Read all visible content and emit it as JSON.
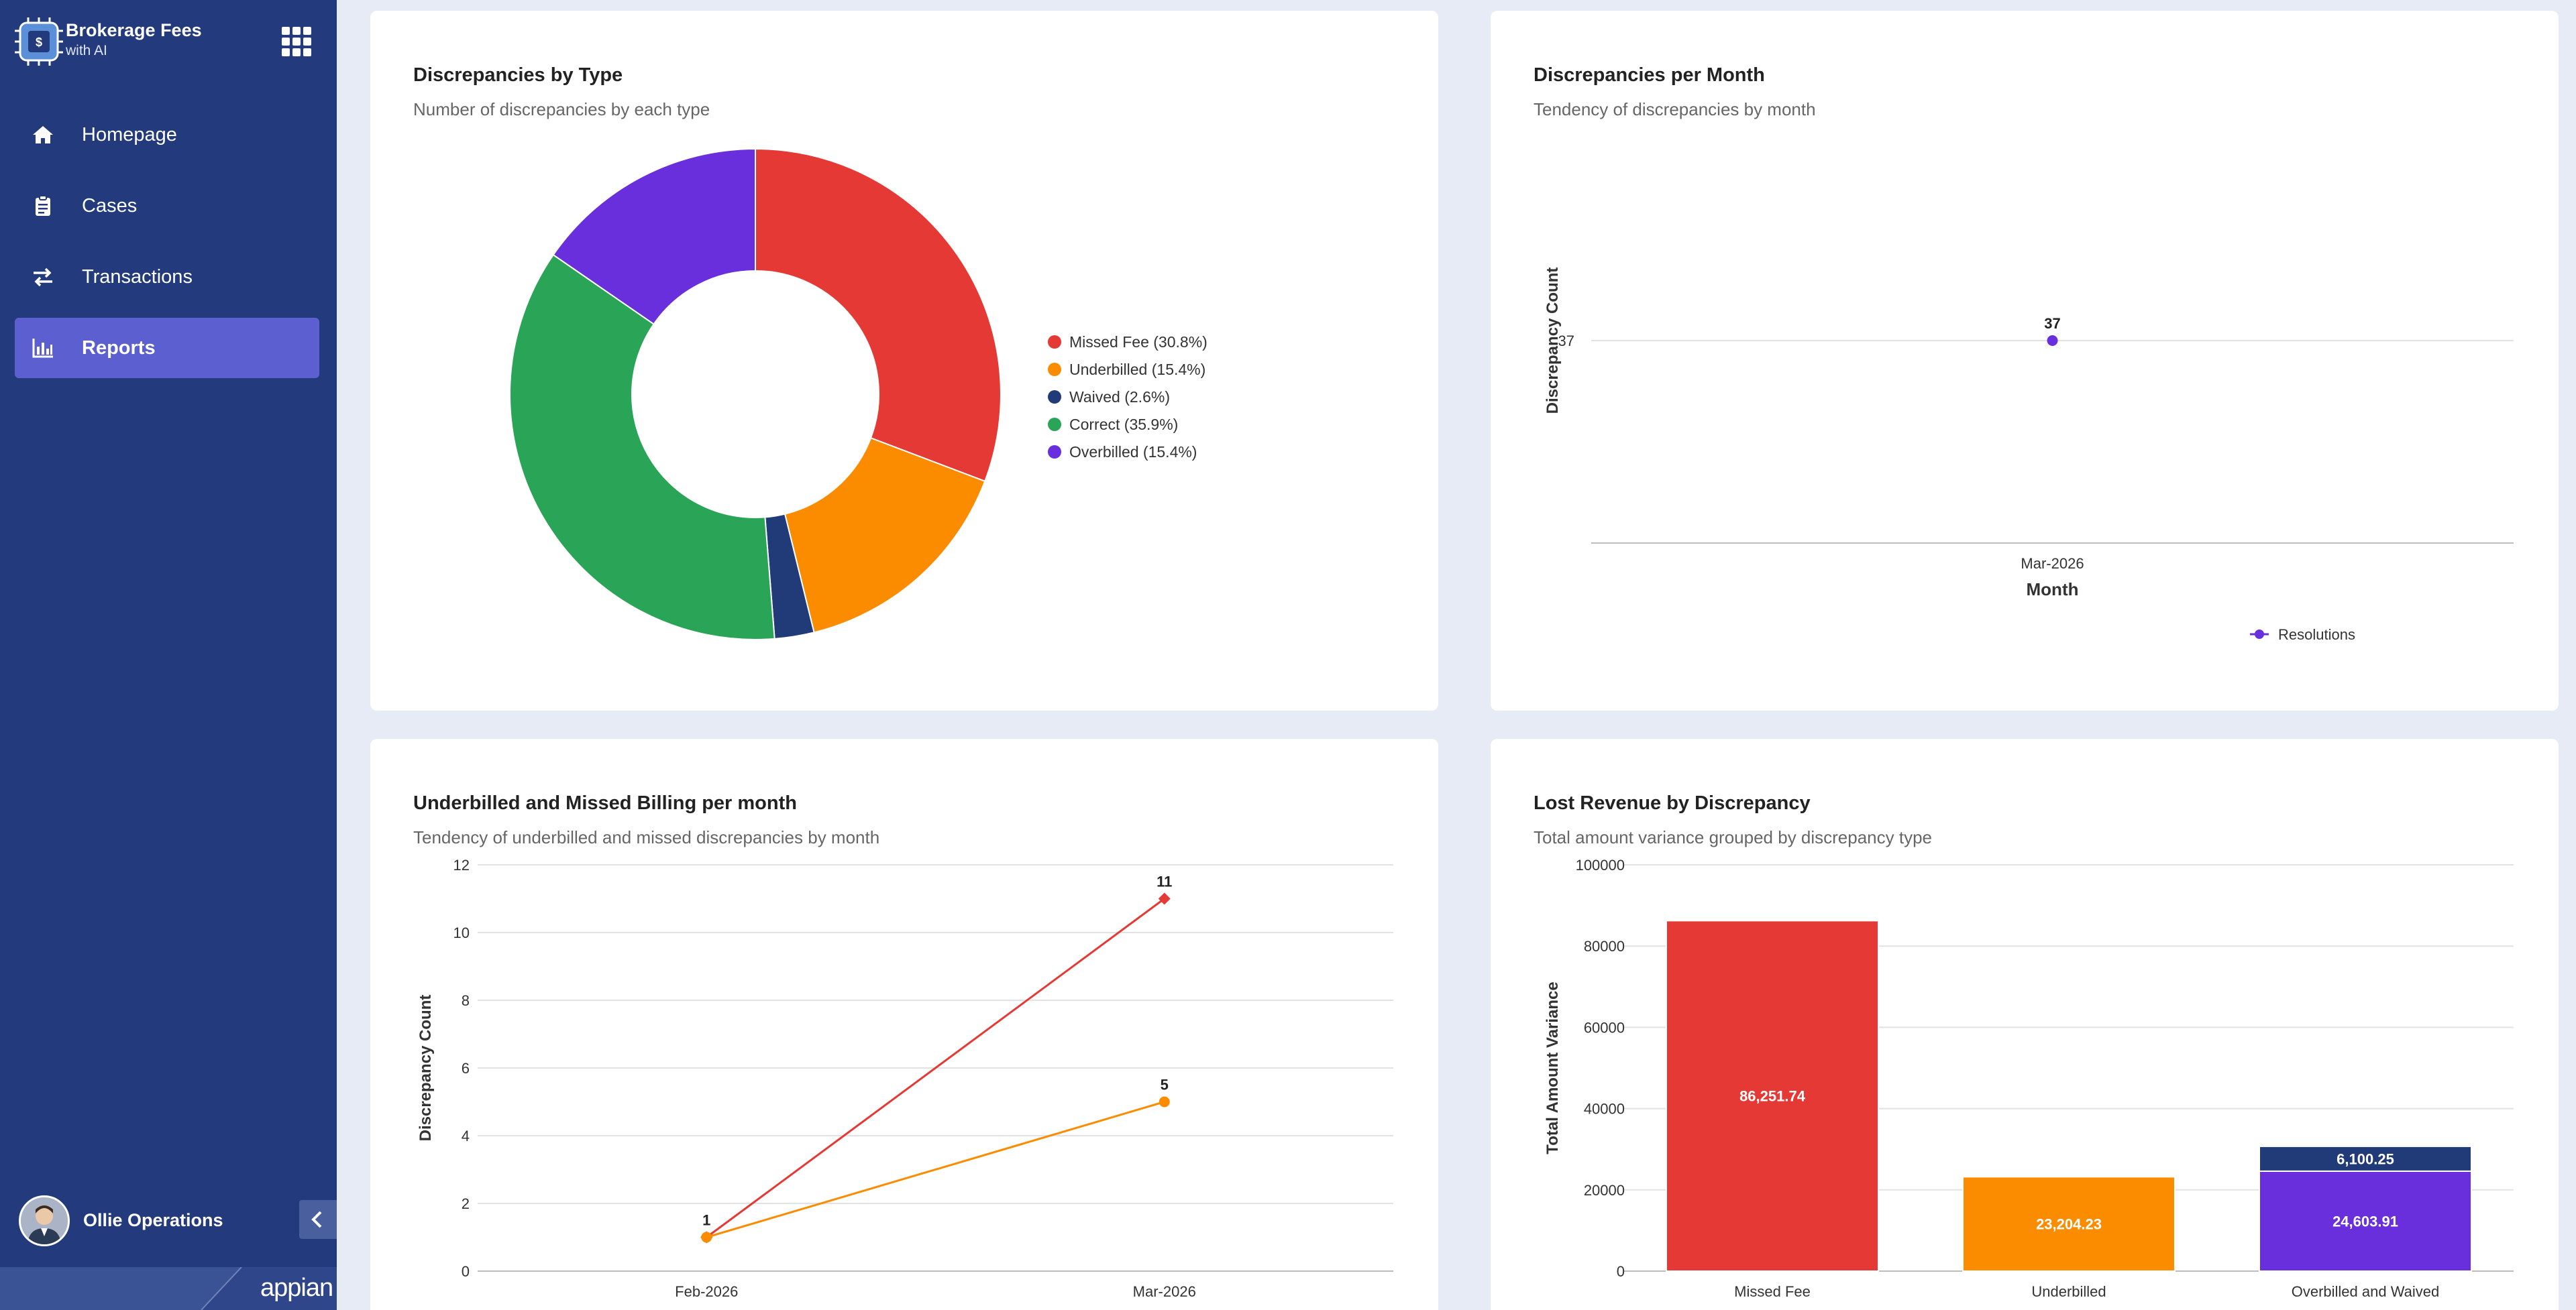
{
  "app": {
    "title": "Brokerage Fees",
    "subtitle": "with AI",
    "platform": "appian"
  },
  "sidebar": {
    "items": [
      {
        "label": "Homepage",
        "icon": "home-icon",
        "active": false
      },
      {
        "label": "Cases",
        "icon": "clipboard-icon",
        "active": false
      },
      {
        "label": "Transactions",
        "icon": "arrows-exchange-icon",
        "active": false
      },
      {
        "label": "Reports",
        "icon": "bar-chart-icon",
        "active": true
      }
    ],
    "user": {
      "name": "Ollie Operations"
    }
  },
  "colors": {
    "sidebar": "#233b7c",
    "active": "#5b5fd0",
    "red": "#e53935",
    "orange": "#fb8c00",
    "navy": "#213a78",
    "green": "#2aa457",
    "purple": "#6a2fdc"
  },
  "cards": {
    "types": {
      "title": "Discrepancies by Type",
      "subtitle": "Number of discrepancies by each type"
    },
    "monthly": {
      "title": "Discrepancies per Month",
      "subtitle": "Tendency of discrepancies by month"
    },
    "underbilled": {
      "title": "Underbilled and Missed Billing per month",
      "subtitle": "Tendency of underbilled and missed discrepancies by month"
    },
    "revenue": {
      "title": "Lost Revenue by Discrepancy",
      "subtitle": "Total amount variance grouped by discrepancy type"
    }
  },
  "chart_data": [
    {
      "type": "pie",
      "title": "Discrepancies by Type",
      "subtitle": "Number of discrepancies by each type",
      "donut": true,
      "legend_position": "right",
      "slices": [
        {
          "label": "Missed Fee (30.8%)",
          "value": 30.8,
          "color": "#e53935"
        },
        {
          "label": "Underbilled (15.4%)",
          "value": 15.4,
          "color": "#fb8c00"
        },
        {
          "label": "Waived (2.6%)",
          "value": 2.6,
          "color": "#213a78"
        },
        {
          "label": "Correct (35.9%)",
          "value": 35.9,
          "color": "#2aa457"
        },
        {
          "label": "Overbilled (15.4%)",
          "value": 15.4,
          "color": "#6a2fdc"
        }
      ]
    },
    {
      "type": "line",
      "title": "Discrepancies per Month",
      "subtitle": "Tendency of discrepancies by month",
      "xlabel": "Month",
      "ylabel": "Discrepancy Count",
      "categories": [
        "Mar-2026"
      ],
      "y_ticks": [
        37
      ],
      "legend_position": "bottom",
      "series": [
        {
          "name": "Resolutions",
          "values": [
            37
          ],
          "color": "#6a2fdc"
        }
      ]
    },
    {
      "type": "line",
      "title": "Underbilled and Missed Billing per month",
      "subtitle": "Tendency of underbilled and missed discrepancies by month",
      "xlabel": "",
      "ylabel": "Discrepancy Count",
      "categories": [
        "Feb-2026",
        "Mar-2026"
      ],
      "ylim": [
        0,
        12
      ],
      "y_ticks": [
        0,
        2,
        4,
        6,
        8,
        10,
        12
      ],
      "grid": true,
      "series": [
        {
          "values": [
            1,
            11
          ],
          "labels": [
            "1",
            "11"
          ],
          "color": "#e53935",
          "marker": "diamond"
        },
        {
          "values": [
            1,
            5
          ],
          "labels": [
            "",
            "5"
          ],
          "color": "#fb8c00",
          "marker": "circle"
        }
      ]
    },
    {
      "type": "bar",
      "stacked": true,
      "title": "Lost Revenue by Discrepancy",
      "subtitle": "Total amount variance grouped by discrepancy type",
      "xlabel": "",
      "ylabel": "Total Amount Variance",
      "categories": [
        "Missed Fee",
        "Underbilled",
        "Overbilled and Waived"
      ],
      "ylim": [
        0,
        100000
      ],
      "y_ticks": [
        "0",
        "20000",
        "40000",
        "60000",
        "80000",
        "100000"
      ],
      "grid": true,
      "series": [
        {
          "values": [
            86251.74,
            23204.23,
            24603.91
          ],
          "labels": [
            "86,251.74",
            "23,204.23",
            "24,603.91"
          ],
          "colors": [
            "#e53935",
            "#fb8c00",
            "#6a2fdc"
          ]
        },
        {
          "values": [
            0,
            0,
            6100.25
          ],
          "labels": [
            "",
            "",
            "6,100.25"
          ],
          "colors": [
            "#213a78",
            "#213a78",
            "#213a78"
          ]
        }
      ]
    }
  ]
}
